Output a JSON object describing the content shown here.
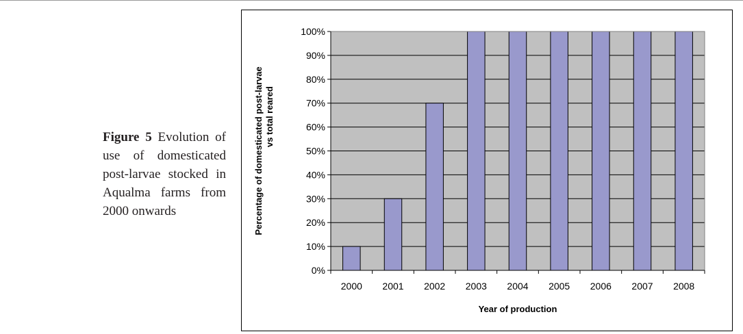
{
  "caption": {
    "label": "Figure 5",
    "text": " Evolution of use of domesticated post-larvae stocked in Aqualma farms from 2000 onwards"
  },
  "colors": {
    "plot_background": "#c0c0c0",
    "bar_fill": "#9999cc",
    "bar_stroke": "#000000"
  },
  "chart_data": {
    "type": "bar",
    "categories": [
      "2000",
      "2001",
      "2002",
      "2003",
      "2004",
      "2005",
      "2006",
      "2007",
      "2008"
    ],
    "values": [
      10,
      30,
      70,
      100,
      100,
      100,
      100,
      100,
      100
    ],
    "xlabel": "Year of production",
    "ylabel_line1": "Percentage of domesticated  post-larvae",
    "ylabel_line2": "vs total reared",
    "ylim": [
      0,
      100
    ],
    "y_ticks": [
      "0%",
      "10%",
      "20%",
      "30%",
      "40%",
      "50%",
      "60%",
      "70%",
      "80%",
      "90%",
      "100%"
    ],
    "grid": true,
    "legend": "none"
  }
}
